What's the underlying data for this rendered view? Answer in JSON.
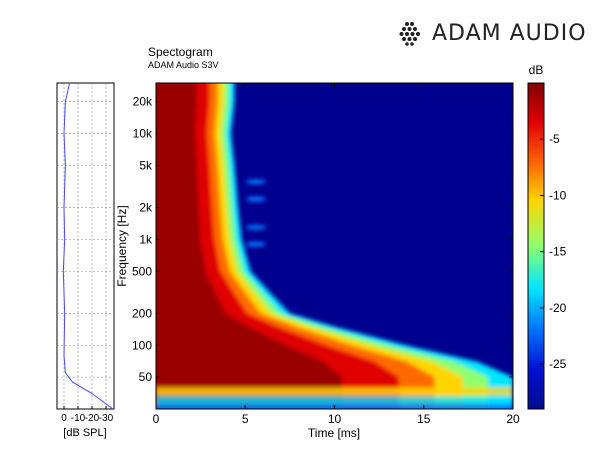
{
  "brand": {
    "name": "ADAM AUDIO",
    "logo_icon": "dotted-hexagon-logo-icon"
  },
  "header": {
    "title": "Spectogram",
    "subtitle": "ADAM Audio S3V"
  },
  "chart_data": [
    {
      "type": "heatmap",
      "title": "Spectogram",
      "subtitle": "ADAM Audio S3V",
      "xlabel": "Time [ms]",
      "ylabel": "Frequency [Hz]",
      "x_ticks": [
        0,
        5,
        10,
        15,
        20
      ],
      "xlim": [
        0,
        20
      ],
      "y_scale": "log",
      "y_ticks": [
        50,
        100,
        200,
        500,
        1000,
        2000,
        5000,
        10000,
        20000
      ],
      "y_tick_labels": [
        "50",
        "100",
        "200",
        "500",
        "1k",
        "2k",
        "5k",
        "10k",
        "20k"
      ],
      "ylim": [
        25,
        30000
      ],
      "colorbar": {
        "label": "dB",
        "ticks": [
          -5,
          -10,
          -15,
          -20,
          -25
        ],
        "range": [
          -29,
          0
        ],
        "colormap": "jet"
      },
      "decay_time_ms_by_frequency": [
        {
          "freq_hz": 30,
          "decay_ms": 20
        },
        {
          "freq_hz": 50,
          "decay_ms": 20
        },
        {
          "freq_hz": 70,
          "decay_ms": 18
        },
        {
          "freq_hz": 100,
          "decay_ms": 14
        },
        {
          "freq_hz": 150,
          "decay_ms": 10
        },
        {
          "freq_hz": 200,
          "decay_ms": 7.5
        },
        {
          "freq_hz": 300,
          "decay_ms": 6.5
        },
        {
          "freq_hz": 500,
          "decay_ms": 5.3
        },
        {
          "freq_hz": 1000,
          "decay_ms": 4.8
        },
        {
          "freq_hz": 2000,
          "decay_ms": 4.6
        },
        {
          "freq_hz": 5000,
          "decay_ms": 4.4
        },
        {
          "freq_hz": 10000,
          "decay_ms": 4.2
        },
        {
          "freq_hz": 20000,
          "decay_ms": 4.4
        }
      ]
    },
    {
      "type": "line",
      "xlabel": "[dB SPL]",
      "x_ticks": [
        0,
        -10,
        -20,
        -30
      ],
      "description_axis": "frequency response (shares frequency axis)",
      "series": [
        {
          "points": [
            {
              "freq_hz": 25,
              "spl_db": -35
            },
            {
              "freq_hz": 35,
              "spl_db": -20
            },
            {
              "freq_hz": 45,
              "spl_db": -6
            },
            {
              "freq_hz": 55,
              "spl_db": -1
            },
            {
              "freq_hz": 80,
              "spl_db": 0
            },
            {
              "freq_hz": 200,
              "spl_db": -0.5
            },
            {
              "freq_hz": 500,
              "spl_db": 0.5
            },
            {
              "freq_hz": 1000,
              "spl_db": -0.5
            },
            {
              "freq_hz": 2000,
              "spl_db": 0
            },
            {
              "freq_hz": 5000,
              "spl_db": -1
            },
            {
              "freq_hz": 10000,
              "spl_db": 0
            },
            {
              "freq_hz": 20000,
              "spl_db": -1
            },
            {
              "freq_hz": 30000,
              "spl_db": -4
            }
          ]
        }
      ]
    }
  ],
  "colors": {
    "response_line": "#4a4af0",
    "background": "#ffffff"
  }
}
